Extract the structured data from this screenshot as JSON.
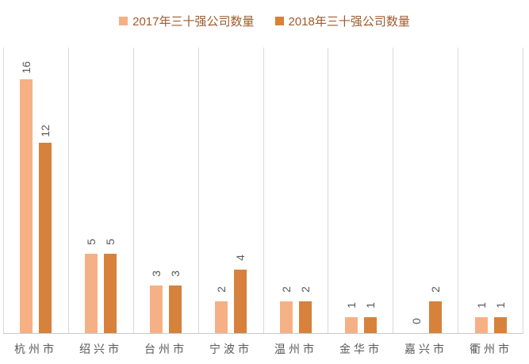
{
  "chart_data": {
    "type": "bar",
    "title": "",
    "categories": [
      "杭州市",
      "绍兴市",
      "台州市",
      "宁波市",
      "温州市",
      "金华市",
      "嘉兴市",
      "衢州市"
    ],
    "series": [
      {
        "name": "2017年三十强公司数量",
        "color": "#F5B185",
        "values": [
          16,
          5,
          3,
          2,
          2,
          1,
          0,
          1
        ]
      },
      {
        "name": "2018年三十强公司数量",
        "color": "#D6813C",
        "values": [
          12,
          5,
          3,
          4,
          2,
          1,
          2,
          1
        ]
      }
    ],
    "ylim": [
      0,
      18
    ],
    "xlabel": "",
    "ylabel": "",
    "grid": "vertical category separators only",
    "legend_position": "top-center",
    "data_labels": "rotated 90° counterclockwise above each bar"
  },
  "colors": {
    "background": "#FFFFFF",
    "gridline": "#D9D9D9",
    "axis_line": "#C9C9C9",
    "data_label_text": "#595959",
    "category_label_text": "#595959",
    "legend_text": "#A05A2C"
  }
}
